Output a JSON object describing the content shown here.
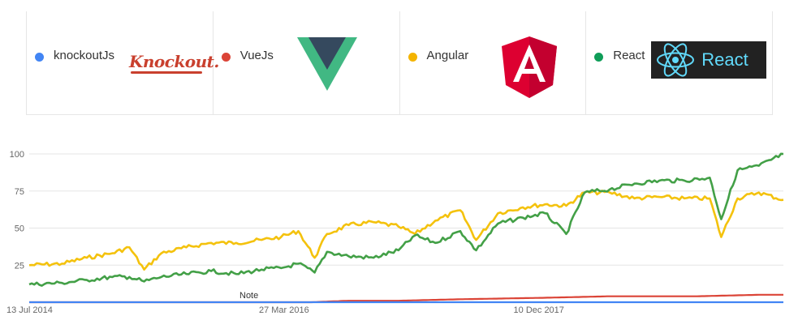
{
  "legend": [
    {
      "term": "knockoutJs",
      "color": "#4285f4",
      "logo": "knockout-logo",
      "logo_text": "Knockout."
    },
    {
      "term": "VueJs",
      "color": "#db4437",
      "logo": "vue-logo"
    },
    {
      "term": "Angular",
      "color": "#f4b400",
      "logo": "angular-logo"
    },
    {
      "term": "React",
      "color": "#0f9d58",
      "logo": "react-logo",
      "logo_text": "React"
    }
  ],
  "annotation": {
    "label": "Note"
  },
  "chart_data": {
    "type": "line",
    "x_ticks": [
      "13 Jul 2014",
      "27 Mar 2016",
      "10 Dec 2017"
    ],
    "x_range": [
      "2014-07-13",
      "2019-07-31"
    ],
    "ylim": [
      0,
      100
    ],
    "y_ticks": [
      25,
      50,
      75,
      100
    ],
    "grid": true,
    "legend_position": "top",
    "series": [
      {
        "name": "Angular",
        "color": "#f4c20d",
        "points": [
          [
            "2014-07-13",
            25
          ],
          [
            "2014-10-01",
            26
          ],
          [
            "2014-12-01",
            30
          ],
          [
            "2015-02-01",
            33
          ],
          [
            "2015-03-15",
            37
          ],
          [
            "2015-04-20",
            22
          ],
          [
            "2015-06-01",
            33
          ],
          [
            "2015-08-01",
            37
          ],
          [
            "2015-10-01",
            40
          ],
          [
            "2015-12-01",
            40
          ],
          [
            "2016-02-01",
            42
          ],
          [
            "2016-03-20",
            44
          ],
          [
            "2016-05-01",
            48
          ],
          [
            "2016-06-10",
            30
          ],
          [
            "2016-07-10",
            46
          ],
          [
            "2016-09-01",
            52
          ],
          [
            "2016-11-01",
            54
          ],
          [
            "2017-01-01",
            51
          ],
          [
            "2017-02-10",
            46
          ],
          [
            "2017-04-01",
            55
          ],
          [
            "2017-06-01",
            62
          ],
          [
            "2017-07-10",
            42
          ],
          [
            "2017-09-01",
            60
          ],
          [
            "2017-11-01",
            64
          ],
          [
            "2017-12-25",
            66
          ],
          [
            "2018-02-15",
            65
          ],
          [
            "2018-04-01",
            74
          ],
          [
            "2018-06-01",
            74
          ],
          [
            "2018-08-01",
            70
          ],
          [
            "2018-10-01",
            71
          ],
          [
            "2018-12-01",
            70
          ],
          [
            "2019-02-01",
            70
          ],
          [
            "2019-03-01",
            44
          ],
          [
            "2019-04-10",
            70
          ],
          [
            "2019-06-01",
            74
          ],
          [
            "2019-07-31",
            69
          ]
        ]
      },
      {
        "name": "React",
        "color": "#43a047",
        "points": [
          [
            "2014-07-13",
            12
          ],
          [
            "2014-10-01",
            13
          ],
          [
            "2014-12-01",
            15
          ],
          [
            "2015-02-01",
            17
          ],
          [
            "2015-03-15",
            17
          ],
          [
            "2015-04-20",
            14
          ],
          [
            "2015-06-01",
            17
          ],
          [
            "2015-08-01",
            19
          ],
          [
            "2015-10-01",
            21
          ],
          [
            "2015-12-01",
            19
          ],
          [
            "2016-02-01",
            22
          ],
          [
            "2016-03-20",
            23
          ],
          [
            "2016-05-01",
            26
          ],
          [
            "2016-06-10",
            20
          ],
          [
            "2016-07-10",
            34
          ],
          [
            "2016-09-01",
            31
          ],
          [
            "2016-11-01",
            30
          ],
          [
            "2017-01-01",
            35
          ],
          [
            "2017-02-10",
            45
          ],
          [
            "2017-04-01",
            40
          ],
          [
            "2017-06-01",
            48
          ],
          [
            "2017-07-10",
            35
          ],
          [
            "2017-09-01",
            53
          ],
          [
            "2017-11-01",
            57
          ],
          [
            "2017-12-25",
            60
          ],
          [
            "2018-02-15",
            46
          ],
          [
            "2018-04-01",
            74
          ],
          [
            "2018-06-01",
            76
          ],
          [
            "2018-08-01",
            80
          ],
          [
            "2018-10-01",
            82
          ],
          [
            "2018-12-01",
            82
          ],
          [
            "2019-02-01",
            84
          ],
          [
            "2019-03-01",
            56
          ],
          [
            "2019-04-10",
            89
          ],
          [
            "2019-06-01",
            92
          ],
          [
            "2019-07-31",
            100
          ]
        ]
      },
      {
        "name": "VueJs",
        "color": "#db4437",
        "points": [
          [
            "2014-07-13",
            0
          ],
          [
            "2016-06-01",
            0
          ],
          [
            "2016-09-01",
            1
          ],
          [
            "2017-01-01",
            1
          ],
          [
            "2017-06-01",
            2
          ],
          [
            "2017-12-25",
            3
          ],
          [
            "2018-06-01",
            4
          ],
          [
            "2019-01-01",
            4
          ],
          [
            "2019-06-01",
            5
          ],
          [
            "2019-07-31",
            5
          ]
        ]
      },
      {
        "name": "knockoutJs",
        "color": "#4285f4",
        "points": [
          [
            "2014-07-13",
            0
          ],
          [
            "2019-07-31",
            0
          ]
        ]
      }
    ]
  }
}
